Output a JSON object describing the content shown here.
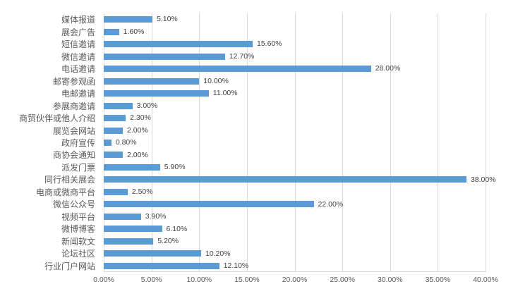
{
  "chart_data": {
    "type": "bar",
    "orientation": "horizontal",
    "title": "",
    "xlabel": "",
    "ylabel": "",
    "grid": "vertical",
    "legend": "none",
    "xlim": [
      0,
      40
    ],
    "categories": [
      "媒体报道",
      "展会广告",
      "短信邀请",
      "微信邀请",
      "电话邀请",
      "邮寄参观函",
      "电邮邀请",
      "参展商邀请",
      "商贸伙伴或他人介绍",
      "展览会网站",
      "政府宣传",
      "商协会通知",
      "派发门票",
      "同行相关展会",
      "电商或微商平台",
      "微信公众号",
      "视频平台",
      "微博博客",
      "新闻软文",
      "论坛社区",
      "行业门户网站"
    ],
    "values": [
      5.1,
      1.6,
      15.6,
      12.7,
      28.0,
      10.0,
      11.0,
      3.0,
      2.3,
      2.0,
      0.8,
      2.0,
      5.9,
      38.0,
      2.5,
      22.0,
      3.9,
      6.1,
      5.2,
      10.2,
      12.1
    ],
    "value_labels": [
      "5.10%",
      "1.60%",
      "15.60%",
      "12.70%",
      "28.00%",
      "10.00%",
      "11.00%",
      "3.00%",
      "2.30%",
      "2.00%",
      "0.80%",
      "2.00%",
      "5.90%",
      "38.00%",
      "2.50%",
      "22.00%",
      "3.90%",
      "6.10%",
      "5.20%",
      "10.20%",
      "12.10%"
    ],
    "x_tick_values": [
      0,
      5,
      10,
      15,
      20,
      25,
      30,
      35,
      40
    ],
    "x_tick_labels": [
      "0.00%",
      "5.00%",
      "10.00%",
      "15.00%",
      "20.00%",
      "25.00%",
      "30.00%",
      "35.00%",
      "40.00%"
    ],
    "colors": {
      "bar": "#5B9BD5",
      "gridline": "#D9D9D9",
      "axis_line": "#D9D9D9",
      "axis_text": "#595959",
      "data_label_text": "#404040",
      "background": "#FFFFFF"
    }
  }
}
